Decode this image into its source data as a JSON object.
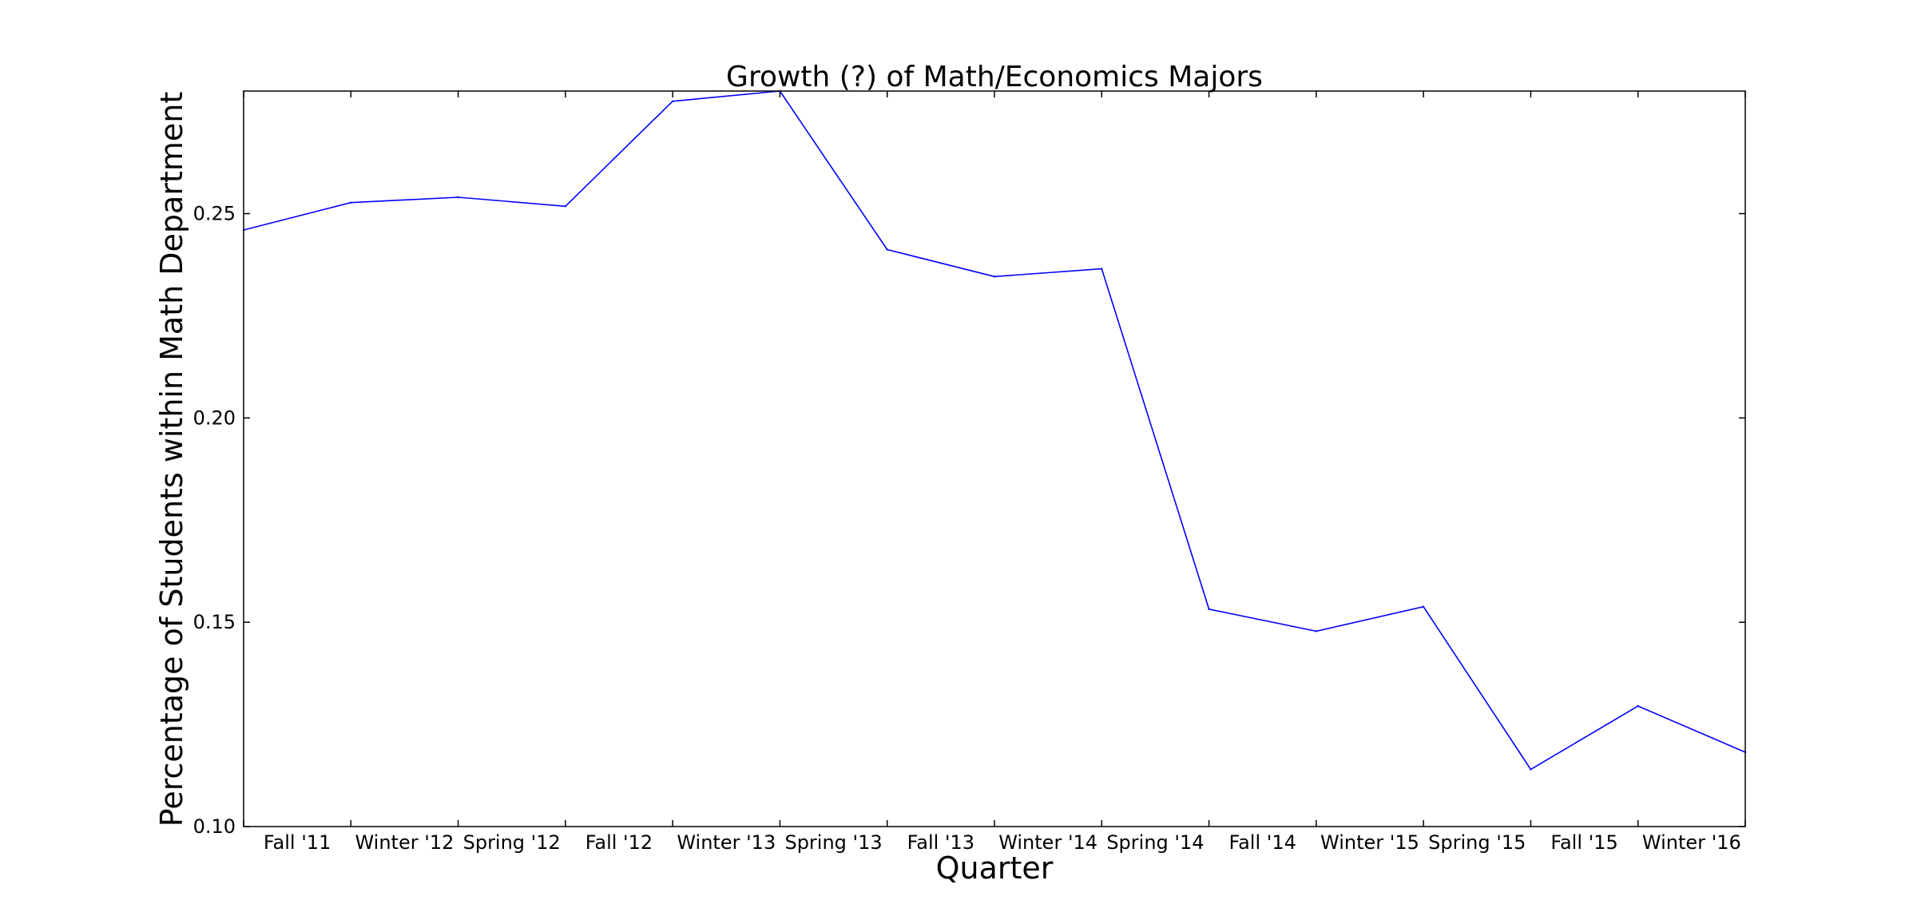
{
  "chart_data": {
    "type": "line",
    "title": "Growth (?) of Math/Economics Majors",
    "xlabel": "Quarter",
    "ylabel": "Percentage of Students within Math Department",
    "x_tick_labels": [
      "Fall '11",
      "Winter '12",
      "Spring '12",
      "Fall '12",
      "Winter '13",
      "Spring '13",
      "Fall '13",
      "Winter '14",
      "Spring '14",
      "Fall '14",
      "Winter '15",
      "Spring '15",
      "Fall '15",
      "Winter '16"
    ],
    "y_ticks": [
      0.1,
      0.15,
      0.2,
      0.25
    ],
    "y_tick_labels": [
      "0.10",
      "0.15",
      "0.20",
      "0.25"
    ],
    "ylim": [
      0.1,
      0.28
    ],
    "xlim": [
      0,
      14
    ],
    "grid": false,
    "series": [
      {
        "color": "#0000ff",
        "x": [
          0,
          1,
          2,
          3,
          4,
          5,
          6,
          7,
          8,
          9,
          10,
          11,
          12,
          13,
          14
        ],
        "values": [
          0.246,
          0.2527,
          0.254,
          0.2518,
          0.2775,
          0.28,
          0.2412,
          0.2346,
          0.2365,
          0.1532,
          0.1478,
          0.1538,
          0.114,
          0.1295,
          0.1182
        ]
      }
    ]
  }
}
